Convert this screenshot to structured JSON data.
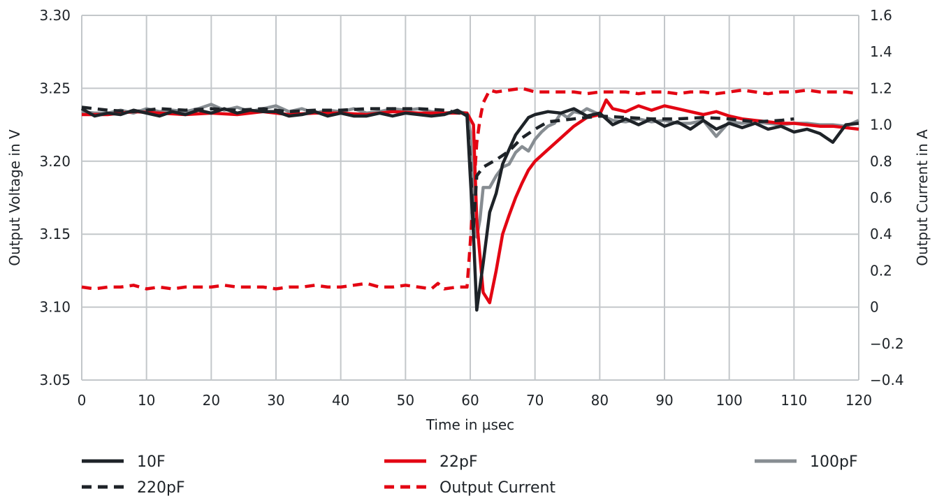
{
  "chart_data": {
    "type": "line",
    "title": "",
    "xlabel": "Time in µsec",
    "ylabel": "Output Voltage in V",
    "y2label": "Output Current in A",
    "xlim": [
      0,
      120
    ],
    "ylim": [
      3.05,
      3.3
    ],
    "y2lim": [
      -0.4,
      1.6
    ],
    "xticks": [
      "0",
      "10",
      "20",
      "30",
      "40",
      "50",
      "60",
      "70",
      "80",
      "90",
      "100",
      "110",
      "120"
    ],
    "yticks": [
      "3.05",
      "3.10",
      "3.15",
      "3.20",
      "3.25",
      "3.30"
    ],
    "y2ticks": [
      "-0.4",
      "-0.2",
      "0",
      "0.2",
      "0.4",
      "0.6",
      "0.8",
      "1.0",
      "1.2",
      "1.4",
      "1.6"
    ],
    "grid": true,
    "legend_position": "bottom",
    "series": [
      {
        "name": "10F",
        "axis": "left",
        "style": "solid",
        "color": "#1e2328",
        "points": [
          [
            0,
            3.236
          ],
          [
            2,
            3.231
          ],
          [
            4,
            3.233
          ],
          [
            6,
            3.232
          ],
          [
            8,
            3.235
          ],
          [
            10,
            3.233
          ],
          [
            12,
            3.231
          ],
          [
            14,
            3.234
          ],
          [
            16,
            3.232
          ],
          [
            18,
            3.235
          ],
          [
            20,
            3.233
          ],
          [
            22,
            3.236
          ],
          [
            24,
            3.233
          ],
          [
            26,
            3.235
          ],
          [
            28,
            3.234
          ],
          [
            30,
            3.234
          ],
          [
            32,
            3.231
          ],
          [
            34,
            3.232
          ],
          [
            36,
            3.234
          ],
          [
            38,
            3.231
          ],
          [
            40,
            3.233
          ],
          [
            42,
            3.231
          ],
          [
            44,
            3.231
          ],
          [
            46,
            3.233
          ],
          [
            48,
            3.231
          ],
          [
            50,
            3.233
          ],
          [
            52,
            3.232
          ],
          [
            54,
            3.231
          ],
          [
            56,
            3.232
          ],
          [
            58,
            3.235
          ],
          [
            59.5,
            3.231
          ],
          [
            60,
            3.19
          ],
          [
            60.5,
            3.15
          ],
          [
            61,
            3.098
          ],
          [
            62,
            3.13
          ],
          [
            63,
            3.165
          ],
          [
            64,
            3.178
          ],
          [
            65,
            3.198
          ],
          [
            66,
            3.208
          ],
          [
            67,
            3.218
          ],
          [
            68,
            3.224
          ],
          [
            69,
            3.23
          ],
          [
            70,
            3.232
          ],
          [
            72,
            3.234
          ],
          [
            74,
            3.233
          ],
          [
            76,
            3.236
          ],
          [
            78,
            3.231
          ],
          [
            80,
            3.233
          ],
          [
            82,
            3.225
          ],
          [
            84,
            3.229
          ],
          [
            86,
            3.225
          ],
          [
            88,
            3.229
          ],
          [
            90,
            3.224
          ],
          [
            92,
            3.227
          ],
          [
            94,
            3.222
          ],
          [
            96,
            3.228
          ],
          [
            98,
            3.222
          ],
          [
            100,
            3.226
          ],
          [
            102,
            3.223
          ],
          [
            104,
            3.226
          ],
          [
            106,
            3.222
          ],
          [
            108,
            3.224
          ],
          [
            110,
            3.22
          ],
          [
            112,
            3.222
          ],
          [
            114,
            3.219
          ],
          [
            116,
            3.213
          ],
          [
            118,
            3.225
          ],
          [
            120,
            3.226
          ]
        ]
      },
      {
        "name": "220pF",
        "axis": "left",
        "style": "dashed",
        "color": "#1e2328",
        "points": [
          [
            0,
            3.237
          ],
          [
            4,
            3.235
          ],
          [
            8,
            3.234
          ],
          [
            12,
            3.236
          ],
          [
            16,
            3.235
          ],
          [
            20,
            3.236
          ],
          [
            24,
            3.235
          ],
          [
            28,
            3.236
          ],
          [
            32,
            3.234
          ],
          [
            36,
            3.235
          ],
          [
            40,
            3.235
          ],
          [
            44,
            3.236
          ],
          [
            48,
            3.236
          ],
          [
            52,
            3.236
          ],
          [
            56,
            3.235
          ],
          [
            59.5,
            3.232
          ],
          [
            60,
            3.2
          ],
          [
            60.5,
            3.155
          ],
          [
            61,
            3.19
          ],
          [
            62,
            3.196
          ],
          [
            64,
            3.201
          ],
          [
            66,
            3.207
          ],
          [
            68,
            3.216
          ],
          [
            70,
            3.222
          ],
          [
            72,
            3.227
          ],
          [
            74,
            3.228
          ],
          [
            76,
            3.229
          ],
          [
            78,
            3.23
          ],
          [
            80,
            3.231
          ],
          [
            84,
            3.23
          ],
          [
            88,
            3.229
          ],
          [
            92,
            3.229
          ],
          [
            96,
            3.23
          ],
          [
            100,
            3.229
          ],
          [
            104,
            3.227
          ],
          [
            108,
            3.228
          ],
          [
            110,
            3.229
          ]
        ]
      },
      {
        "name": "22pF",
        "axis": "left",
        "style": "solid",
        "color": "#e30613",
        "points": [
          [
            0,
            3.232
          ],
          [
            4,
            3.232
          ],
          [
            8,
            3.234
          ],
          [
            12,
            3.233
          ],
          [
            16,
            3.232
          ],
          [
            20,
            3.233
          ],
          [
            24,
            3.232
          ],
          [
            28,
            3.234
          ],
          [
            32,
            3.232
          ],
          [
            36,
            3.233
          ],
          [
            40,
            3.233
          ],
          [
            44,
            3.232
          ],
          [
            48,
            3.234
          ],
          [
            52,
            3.233
          ],
          [
            56,
            3.233
          ],
          [
            59.5,
            3.233
          ],
          [
            60.5,
            3.225
          ],
          [
            61,
            3.16
          ],
          [
            62,
            3.11
          ],
          [
            63,
            3.103
          ],
          [
            64,
            3.125
          ],
          [
            65,
            3.15
          ],
          [
            66,
            3.163
          ],
          [
            67,
            3.175
          ],
          [
            68,
            3.185
          ],
          [
            69,
            3.194
          ],
          [
            70,
            3.2
          ],
          [
            72,
            3.208
          ],
          [
            74,
            3.216
          ],
          [
            76,
            3.224
          ],
          [
            78,
            3.23
          ],
          [
            80,
            3.232
          ],
          [
            81,
            3.242
          ],
          [
            82,
            3.236
          ],
          [
            84,
            3.234
          ],
          [
            86,
            3.238
          ],
          [
            88,
            3.235
          ],
          [
            90,
            3.238
          ],
          [
            92,
            3.236
          ],
          [
            94,
            3.234
          ],
          [
            96,
            3.232
          ],
          [
            98,
            3.234
          ],
          [
            100,
            3.231
          ],
          [
            102,
            3.229
          ],
          [
            104,
            3.228
          ],
          [
            106,
            3.227
          ],
          [
            108,
            3.226
          ],
          [
            110,
            3.226
          ],
          [
            112,
            3.225
          ],
          [
            114,
            3.224
          ],
          [
            116,
            3.224
          ],
          [
            118,
            3.223
          ],
          [
            120,
            3.222
          ]
        ]
      },
      {
        "name": "100pF",
        "axis": "left",
        "style": "solid",
        "color": "#878d92",
        "points": [
          [
            0,
            3.234
          ],
          [
            2,
            3.233
          ],
          [
            4,
            3.233
          ],
          [
            6,
            3.235
          ],
          [
            8,
            3.233
          ],
          [
            10,
            3.236
          ],
          [
            12,
            3.234
          ],
          [
            14,
            3.235
          ],
          [
            16,
            3.234
          ],
          [
            18,
            3.236
          ],
          [
            20,
            3.239
          ],
          [
            22,
            3.235
          ],
          [
            24,
            3.237
          ],
          [
            26,
            3.234
          ],
          [
            28,
            3.236
          ],
          [
            30,
            3.238
          ],
          [
            32,
            3.234
          ],
          [
            34,
            3.236
          ],
          [
            36,
            3.233
          ],
          [
            38,
            3.235
          ],
          [
            40,
            3.234
          ],
          [
            42,
            3.236
          ],
          [
            44,
            3.233
          ],
          [
            46,
            3.234
          ],
          [
            48,
            3.236
          ],
          [
            50,
            3.235
          ],
          [
            52,
            3.236
          ],
          [
            54,
            3.234
          ],
          [
            56,
            3.233
          ],
          [
            58,
            3.234
          ],
          [
            59.5,
            3.233
          ],
          [
            60,
            3.22
          ],
          [
            60.5,
            3.17
          ],
          [
            61,
            3.148
          ],
          [
            61.5,
            3.16
          ],
          [
            62,
            3.182
          ],
          [
            63,
            3.182
          ],
          [
            64,
            3.19
          ],
          [
            65,
            3.196
          ],
          [
            66,
            3.198
          ],
          [
            67,
            3.206
          ],
          [
            68,
            3.21
          ],
          [
            69,
            3.207
          ],
          [
            70,
            3.215
          ],
          [
            71,
            3.22
          ],
          [
            72,
            3.224
          ],
          [
            73,
            3.226
          ],
          [
            74,
            3.233
          ],
          [
            75,
            3.23
          ],
          [
            76,
            3.234
          ],
          [
            77,
            3.233
          ],
          [
            78,
            3.236
          ],
          [
            80,
            3.232
          ],
          [
            82,
            3.228
          ],
          [
            84,
            3.227
          ],
          [
            86,
            3.229
          ],
          [
            88,
            3.227
          ],
          [
            90,
            3.228
          ],
          [
            92,
            3.226
          ],
          [
            94,
            3.226
          ],
          [
            96,
            3.228
          ],
          [
            98,
            3.217
          ],
          [
            100,
            3.227
          ],
          [
            102,
            3.226
          ],
          [
            104,
            3.227
          ],
          [
            106,
            3.226
          ],
          [
            108,
            3.225
          ],
          [
            110,
            3.226
          ],
          [
            112,
            3.226
          ],
          [
            114,
            3.225
          ],
          [
            116,
            3.225
          ],
          [
            118,
            3.224
          ],
          [
            120,
            3.228
          ]
        ]
      },
      {
        "name": "Output Current",
        "axis": "right",
        "style": "dashed",
        "color": "#e30613",
        "points": [
          [
            0,
            0.11
          ],
          [
            2,
            0.1
          ],
          [
            4,
            0.11
          ],
          [
            6,
            0.11
          ],
          [
            8,
            0.12
          ],
          [
            10,
            0.1
          ],
          [
            12,
            0.11
          ],
          [
            14,
            0.1
          ],
          [
            16,
            0.11
          ],
          [
            18,
            0.11
          ],
          [
            20,
            0.11
          ],
          [
            22,
            0.12
          ],
          [
            24,
            0.11
          ],
          [
            26,
            0.11
          ],
          [
            28,
            0.11
          ],
          [
            30,
            0.1
          ],
          [
            32,
            0.11
          ],
          [
            34,
            0.11
          ],
          [
            36,
            0.12
          ],
          [
            38,
            0.11
          ],
          [
            40,
            0.11
          ],
          [
            42,
            0.12
          ],
          [
            44,
            0.13
          ],
          [
            46,
            0.11
          ],
          [
            48,
            0.11
          ],
          [
            50,
            0.12
          ],
          [
            52,
            0.11
          ],
          [
            54,
            0.1
          ],
          [
            55,
            0.13
          ],
          [
            56,
            0.1
          ],
          [
            58,
            0.11
          ],
          [
            59.5,
            0.11
          ],
          [
            60,
            0.35
          ],
          [
            61,
            0.9
          ],
          [
            61.5,
            1.03
          ],
          [
            62,
            1.12
          ],
          [
            63,
            1.19
          ],
          [
            64,
            1.18
          ],
          [
            66,
            1.19
          ],
          [
            68,
            1.2
          ],
          [
            70,
            1.18
          ],
          [
            72,
            1.18
          ],
          [
            74,
            1.18
          ],
          [
            76,
            1.18
          ],
          [
            78,
            1.17
          ],
          [
            80,
            1.18
          ],
          [
            82,
            1.18
          ],
          [
            84,
            1.18
          ],
          [
            86,
            1.17
          ],
          [
            88,
            1.18
          ],
          [
            90,
            1.18
          ],
          [
            92,
            1.17
          ],
          [
            94,
            1.18
          ],
          [
            96,
            1.18
          ],
          [
            98,
            1.17
          ],
          [
            100,
            1.18
          ],
          [
            102,
            1.19
          ],
          [
            104,
            1.18
          ],
          [
            106,
            1.17
          ],
          [
            108,
            1.18
          ],
          [
            110,
            1.18
          ],
          [
            112,
            1.19
          ],
          [
            114,
            1.18
          ],
          [
            116,
            1.18
          ],
          [
            118,
            1.18
          ],
          [
            120,
            1.17
          ]
        ]
      }
    ]
  }
}
